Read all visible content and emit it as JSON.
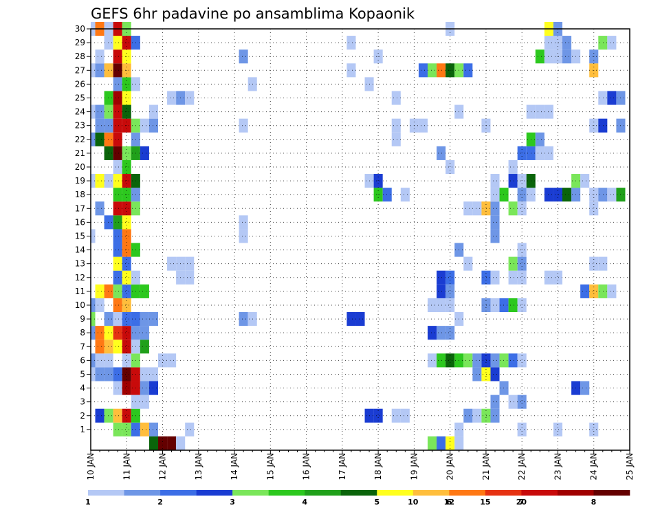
{
  "chart_data": {
    "type": "heatmap",
    "title": "GEFS 6hr padavine po ansamblima Kopaonik",
    "xlabel": "",
    "ylabel": "",
    "x_ticks": [
      "10 JAN",
      "11 JAN",
      "12 JAN",
      "13 JAN",
      "14 JAN",
      "15 JAN",
      "16 JAN",
      "17 JAN",
      "18 JAN",
      "19 JAN",
      "20 JAN",
      "21 JAN",
      "22 JAN",
      "23 JAN",
      "24 JAN",
      "25 JAN"
    ],
    "y_ticks": [
      "1",
      "2",
      "3",
      "4",
      "5",
      "6",
      "7",
      "8",
      "9",
      "10",
      "11",
      "12",
      "13",
      "14",
      "15",
      "16",
      "17",
      "18",
      "19",
      "20",
      "21",
      "22",
      "23",
      "24",
      "25",
      "26",
      "27",
      "28",
      "29",
      "30"
    ],
    "x_range": [
      "10 JAN 00Z",
      "25 JAN 00Z"
    ],
    "time_step_hours": 6,
    "y_range": [
      0,
      30
    ],
    "grid": true,
    "grid_style": "dotted",
    "colorbar": {
      "orientation": "horizontal",
      "placement": "bottom",
      "labels": [
        "1",
        "2",
        "3",
        "4",
        "5",
        "6",
        "7",
        "8",
        "10",
        "12",
        "15",
        "20"
      ],
      "colors": [
        "#b4c8f5",
        "#6e96e6",
        "#3c6ee6",
        "#1a3cd2",
        "#7ae65a",
        "#2cc81e",
        "#20a01a",
        "#0a640a",
        "#ffff1e",
        "#ffbe3c",
        "#ff7814",
        "#e63212",
        "#c80a0a",
        "#a00000",
        "#640000"
      ]
    },
    "series_note": "cells: [member, time index (6h steps from 10 JAN 00Z, center of first cell), color class 1-15]",
    "cells": [
      [
        0,
        7,
        8
      ],
      [
        0,
        8,
        15
      ],
      [
        0,
        9,
        15
      ],
      [
        0,
        10,
        1
      ],
      [
        0,
        38,
        5
      ],
      [
        0,
        39,
        3
      ],
      [
        0,
        40,
        9
      ],
      [
        0,
        41,
        1
      ],
      [
        1,
        3,
        5
      ],
      [
        1,
        4,
        5
      ],
      [
        1,
        5,
        3
      ],
      [
        1,
        6,
        10
      ],
      [
        1,
        7,
        2
      ],
      [
        1,
        11,
        1
      ],
      [
        1,
        41,
        1
      ],
      [
        1,
        48,
        1
      ],
      [
        1,
        52,
        1
      ],
      [
        1,
        56,
        1
      ],
      [
        2,
        1,
        4
      ],
      [
        2,
        2,
        5
      ],
      [
        2,
        3,
        10
      ],
      [
        2,
        4,
        13
      ],
      [
        2,
        5,
        6
      ],
      [
        2,
        31,
        4
      ],
      [
        2,
        32,
        4
      ],
      [
        2,
        34,
        1
      ],
      [
        2,
        35,
        1
      ],
      [
        2,
        42,
        2
      ],
      [
        2,
        43,
        1
      ],
      [
        2,
        44,
        5
      ],
      [
        2,
        45,
        2
      ],
      [
        3,
        5,
        1
      ],
      [
        3,
        6,
        1
      ],
      [
        3,
        45,
        2
      ],
      [
        3,
        47,
        1
      ],
      [
        3,
        48,
        2
      ],
      [
        4,
        3,
        1
      ],
      [
        4,
        4,
        14
      ],
      [
        4,
        5,
        13
      ],
      [
        4,
        6,
        2
      ],
      [
        4,
        7,
        4
      ],
      [
        4,
        46,
        2
      ],
      [
        4,
        54,
        4
      ],
      [
        4,
        55,
        2
      ],
      [
        5,
        0,
        1
      ],
      [
        5,
        1,
        2
      ],
      [
        5,
        2,
        2
      ],
      [
        5,
        3,
        3
      ],
      [
        5,
        4,
        15
      ],
      [
        5,
        5,
        13
      ],
      [
        5,
        6,
        1
      ],
      [
        5,
        7,
        1
      ],
      [
        5,
        43,
        2
      ],
      [
        5,
        44,
        9
      ],
      [
        5,
        45,
        4
      ],
      [
        6,
        0,
        2
      ],
      [
        6,
        1,
        1
      ],
      [
        6,
        2,
        1
      ],
      [
        6,
        4,
        1
      ],
      [
        6,
        5,
        5
      ],
      [
        6,
        8,
        1
      ],
      [
        6,
        9,
        1
      ],
      [
        6,
        38,
        1
      ],
      [
        6,
        39,
        6
      ],
      [
        6,
        40,
        8
      ],
      [
        6,
        41,
        6
      ],
      [
        6,
        42,
        5
      ],
      [
        6,
        43,
        2
      ],
      [
        6,
        44,
        4
      ],
      [
        6,
        45,
        2
      ],
      [
        6,
        46,
        5
      ],
      [
        6,
        47,
        3
      ],
      [
        6,
        48,
        1
      ],
      [
        7,
        1,
        11
      ],
      [
        7,
        2,
        10
      ],
      [
        7,
        3,
        9
      ],
      [
        7,
        4,
        13
      ],
      [
        7,
        5,
        1
      ],
      [
        7,
        6,
        7
      ],
      [
        8,
        0,
        2
      ],
      [
        8,
        1,
        11
      ],
      [
        8,
        2,
        9
      ],
      [
        8,
        3,
        12
      ],
      [
        8,
        4,
        13
      ],
      [
        8,
        5,
        2
      ],
      [
        8,
        6,
        2
      ],
      [
        8,
        38,
        4
      ],
      [
        8,
        39,
        2
      ],
      [
        8,
        40,
        2
      ],
      [
        9,
        0,
        5
      ],
      [
        9,
        2,
        2
      ],
      [
        9,
        3,
        1
      ],
      [
        9,
        4,
        3
      ],
      [
        9,
        5,
        3
      ],
      [
        9,
        6,
        2
      ],
      [
        9,
        7,
        2
      ],
      [
        9,
        17,
        2
      ],
      [
        9,
        18,
        1
      ],
      [
        9,
        29,
        4
      ],
      [
        9,
        30,
        4
      ],
      [
        9,
        41,
        1
      ],
      [
        10,
        0,
        2
      ],
      [
        10,
        1,
        1
      ],
      [
        10,
        3,
        11
      ],
      [
        10,
        4,
        10
      ],
      [
        10,
        38,
        1
      ],
      [
        10,
        39,
        1
      ],
      [
        10,
        40,
        1
      ],
      [
        10,
        44,
        2
      ],
      [
        10,
        45,
        1
      ],
      [
        10,
        46,
        3
      ],
      [
        10,
        47,
        6
      ],
      [
        10,
        48,
        1
      ],
      [
        11,
        1,
        9
      ],
      [
        11,
        2,
        11
      ],
      [
        11,
        3,
        5
      ],
      [
        11,
        4,
        3
      ],
      [
        11,
        5,
        6
      ],
      [
        11,
        6,
        6
      ],
      [
        11,
        39,
        4
      ],
      [
        11,
        40,
        2
      ],
      [
        11,
        55,
        3
      ],
      [
        11,
        56,
        10
      ],
      [
        11,
        57,
        5
      ],
      [
        11,
        58,
        1
      ],
      [
        12,
        3,
        3
      ],
      [
        12,
        4,
        9
      ],
      [
        12,
        5,
        1
      ],
      [
        12,
        10,
        1
      ],
      [
        12,
        11,
        1
      ],
      [
        12,
        39,
        4
      ],
      [
        12,
        40,
        3
      ],
      [
        12,
        44,
        3
      ],
      [
        12,
        45,
        1
      ],
      [
        12,
        47,
        1
      ],
      [
        12,
        48,
        1
      ],
      [
        12,
        51,
        1
      ],
      [
        12,
        52,
        1
      ],
      [
        13,
        3,
        9
      ],
      [
        13,
        4,
        3
      ],
      [
        13,
        9,
        1
      ],
      [
        13,
        10,
        1
      ],
      [
        13,
        11,
        1
      ],
      [
        13,
        42,
        1
      ],
      [
        13,
        47,
        5
      ],
      [
        13,
        48,
        2
      ],
      [
        13,
        56,
        1
      ],
      [
        13,
        57,
        1
      ],
      [
        14,
        3,
        3
      ],
      [
        14,
        4,
        11
      ],
      [
        14,
        5,
        6
      ],
      [
        14,
        41,
        2
      ],
      [
        14,
        48,
        1
      ],
      [
        15,
        0,
        1
      ],
      [
        15,
        3,
        3
      ],
      [
        15,
        4,
        11
      ],
      [
        15,
        17,
        1
      ],
      [
        15,
        45,
        2
      ],
      [
        16,
        2,
        3
      ],
      [
        16,
        3,
        7
      ],
      [
        16,
        4,
        9
      ],
      [
        16,
        17,
        1
      ],
      [
        16,
        45,
        2
      ],
      [
        17,
        1,
        2
      ],
      [
        17,
        3,
        13
      ],
      [
        17,
        4,
        13
      ],
      [
        17,
        5,
        5
      ],
      [
        17,
        42,
        1
      ],
      [
        17,
        43,
        1
      ],
      [
        17,
        44,
        10
      ],
      [
        17,
        45,
        2
      ],
      [
        17,
        47,
        5
      ],
      [
        17,
        48,
        1
      ],
      [
        17,
        56,
        1
      ],
      [
        18,
        3,
        6
      ],
      [
        18,
        4,
        6
      ],
      [
        18,
        5,
        2
      ],
      [
        18,
        32,
        6
      ],
      [
        18,
        33,
        3
      ],
      [
        18,
        35,
        1
      ],
      [
        18,
        45,
        1
      ],
      [
        18,
        46,
        6
      ],
      [
        18,
        48,
        2
      ],
      [
        18,
        49,
        1
      ],
      [
        18,
        51,
        4
      ],
      [
        18,
        52,
        4
      ],
      [
        18,
        53,
        8
      ],
      [
        18,
        54,
        2
      ],
      [
        18,
        56,
        1
      ],
      [
        18,
        57,
        2
      ],
      [
        18,
        58,
        1
      ],
      [
        18,
        59,
        7
      ],
      [
        19,
        0,
        1
      ],
      [
        19,
        1,
        9
      ],
      [
        19,
        2,
        1
      ],
      [
        19,
        3,
        9
      ],
      [
        19,
        4,
        13
      ],
      [
        19,
        5,
        8
      ],
      [
        19,
        31,
        1
      ],
      [
        19,
        32,
        4
      ],
      [
        19,
        45,
        1
      ],
      [
        19,
        47,
        4
      ],
      [
        19,
        48,
        1
      ],
      [
        19,
        49,
        8
      ],
      [
        19,
        54,
        5
      ],
      [
        19,
        55,
        1
      ],
      [
        20,
        3,
        1
      ],
      [
        20,
        4,
        6
      ],
      [
        20,
        40,
        1
      ],
      [
        20,
        47,
        1
      ],
      [
        21,
        2,
        8
      ],
      [
        21,
        3,
        15
      ],
      [
        21,
        4,
        5
      ],
      [
        21,
        5,
        7
      ],
      [
        21,
        6,
        4
      ],
      [
        21,
        39,
        2
      ],
      [
        21,
        48,
        3
      ],
      [
        21,
        49,
        3
      ],
      [
        21,
        50,
        1
      ],
      [
        21,
        51,
        1
      ],
      [
        22,
        0,
        2
      ],
      [
        22,
        1,
        8
      ],
      [
        22,
        2,
        11
      ],
      [
        22,
        3,
        13
      ],
      [
        22,
        5,
        2
      ],
      [
        22,
        34,
        1
      ],
      [
        22,
        49,
        6
      ],
      [
        22,
        50,
        2
      ],
      [
        23,
        1,
        2
      ],
      [
        23,
        2,
        2
      ],
      [
        23,
        3,
        13
      ],
      [
        23,
        4,
        13
      ],
      [
        23,
        5,
        5
      ],
      [
        23,
        6,
        1
      ],
      [
        23,
        7,
        2
      ],
      [
        23,
        17,
        1
      ],
      [
        23,
        34,
        1
      ],
      [
        23,
        36,
        1
      ],
      [
        23,
        37,
        1
      ],
      [
        23,
        44,
        1
      ],
      [
        23,
        56,
        1
      ],
      [
        23,
        57,
        4
      ],
      [
        23,
        59,
        2
      ],
      [
        24,
        0,
        1
      ],
      [
        24,
        1,
        2
      ],
      [
        24,
        2,
        5
      ],
      [
        24,
        3,
        13
      ],
      [
        24,
        4,
        8
      ],
      [
        24,
        7,
        1
      ],
      [
        24,
        41,
        1
      ],
      [
        24,
        49,
        1
      ],
      [
        24,
        50,
        1
      ],
      [
        24,
        51,
        1
      ],
      [
        25,
        2,
        6
      ],
      [
        25,
        3,
        14
      ],
      [
        25,
        4,
        9
      ],
      [
        25,
        9,
        1
      ],
      [
        25,
        10,
        2
      ],
      [
        25,
        11,
        1
      ],
      [
        25,
        34,
        1
      ],
      [
        25,
        57,
        1
      ],
      [
        25,
        58,
        4
      ],
      [
        25,
        59,
        2
      ],
      [
        26,
        3,
        2
      ],
      [
        26,
        4,
        6
      ],
      [
        26,
        5,
        1
      ],
      [
        26,
        18,
        1
      ],
      [
        26,
        31,
        1
      ],
      [
        27,
        0,
        1
      ],
      [
        27,
        1,
        2
      ],
      [
        27,
        2,
        10
      ],
      [
        27,
        3,
        15
      ],
      [
        27,
        4,
        10
      ],
      [
        27,
        29,
        1
      ],
      [
        27,
        37,
        3
      ],
      [
        27,
        38,
        5
      ],
      [
        27,
        39,
        11
      ],
      [
        27,
        40,
        8
      ],
      [
        27,
        41,
        5
      ],
      [
        27,
        42,
        3
      ],
      [
        27,
        56,
        10
      ],
      [
        28,
        1,
        1
      ],
      [
        28,
        3,
        13
      ],
      [
        28,
        4,
        9
      ],
      [
        28,
        17,
        2
      ],
      [
        28,
        32,
        1
      ],
      [
        28,
        50,
        6
      ],
      [
        28,
        51,
        1
      ],
      [
        28,
        52,
        1
      ],
      [
        28,
        53,
        2
      ],
      [
        28,
        54,
        1
      ],
      [
        28,
        56,
        2
      ],
      [
        29,
        2,
        1
      ],
      [
        29,
        3,
        9
      ],
      [
        29,
        4,
        13
      ],
      [
        29,
        5,
        3
      ],
      [
        29,
        29,
        1
      ],
      [
        29,
        51,
        1
      ],
      [
        29,
        52,
        1
      ],
      [
        29,
        53,
        2
      ],
      [
        29,
        57,
        5
      ],
      [
        29,
        58,
        1
      ],
      [
        30,
        0,
        1
      ],
      [
        30,
        1,
        11
      ],
      [
        30,
        2,
        1
      ],
      [
        30,
        3,
        13
      ],
      [
        30,
        4,
        5
      ],
      [
        30,
        40,
        1
      ],
      [
        30,
        51,
        9
      ],
      [
        30,
        52,
        2
      ]
    ]
  }
}
